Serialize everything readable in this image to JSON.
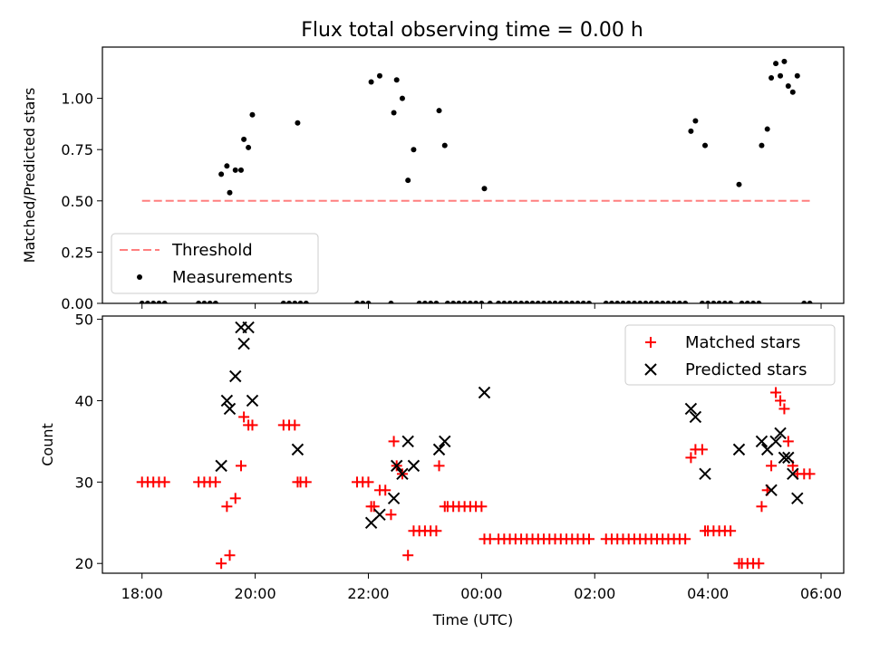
{
  "chart_data": [
    {
      "type": "scatter",
      "title": "Flux total observing time = 0.00 h",
      "xlabel": "",
      "ylabel": "Matched/Predicted stars",
      "xlim": [
        -0.7,
        12.4
      ],
      "ylim": [
        0,
        1.25
      ],
      "yticks": [
        0.0,
        0.25,
        0.5,
        0.75,
        1.0
      ],
      "ytick_labels": [
        "0.00",
        "0.25",
        "0.50",
        "0.75",
        "1.00"
      ],
      "xticks": [
        0,
        2,
        4,
        6,
        8,
        10,
        12
      ],
      "legend": {
        "position": "lower-left",
        "entries": [
          "Threshold",
          "Measurements"
        ]
      },
      "threshold": {
        "name": "Threshold",
        "value": 0.5,
        "x_range": [
          0,
          11.8
        ],
        "color": "#ff7f7f"
      },
      "series": [
        {
          "name": "Measurements",
          "color": "#000000",
          "points": [
            [
              0.0,
              0
            ],
            [
              0.1,
              0
            ],
            [
              0.2,
              0
            ],
            [
              0.3,
              0
            ],
            [
              0.4,
              0
            ],
            [
              1.0,
              0
            ],
            [
              1.1,
              0
            ],
            [
              1.2,
              0
            ],
            [
              1.3,
              0
            ],
            [
              1.4,
              0.63
            ],
            [
              1.5,
              0.67
            ],
            [
              1.55,
              0.54
            ],
            [
              1.65,
              0.65
            ],
            [
              1.75,
              0.65
            ],
            [
              1.8,
              0.8
            ],
            [
              1.88,
              0.76
            ],
            [
              1.95,
              0.92
            ],
            [
              2.5,
              0
            ],
            [
              2.6,
              0
            ],
            [
              2.7,
              0
            ],
            [
              2.75,
              0.88
            ],
            [
              2.8,
              0
            ],
            [
              2.9,
              0
            ],
            [
              3.8,
              0
            ],
            [
              3.9,
              0
            ],
            [
              4.0,
              0
            ],
            [
              4.05,
              1.08
            ],
            [
              4.2,
              1.11
            ],
            [
              4.4,
              0
            ],
            [
              4.45,
              0.93
            ],
            [
              4.5,
              1.09
            ],
            [
              4.6,
              1.0
            ],
            [
              4.7,
              0.6
            ],
            [
              4.8,
              0.75
            ],
            [
              4.9,
              0
            ],
            [
              5.0,
              0
            ],
            [
              5.1,
              0
            ],
            [
              5.2,
              0
            ],
            [
              5.25,
              0.94
            ],
            [
              5.35,
              0.77
            ],
            [
              5.4,
              0
            ],
            [
              5.5,
              0
            ],
            [
              5.6,
              0
            ],
            [
              5.7,
              0
            ],
            [
              5.8,
              0
            ],
            [
              5.9,
              0
            ],
            [
              6.0,
              0
            ],
            [
              6.05,
              0.56
            ],
            [
              6.15,
              0
            ],
            [
              6.3,
              0
            ],
            [
              6.4,
              0
            ],
            [
              6.5,
              0
            ],
            [
              6.6,
              0
            ],
            [
              6.7,
              0
            ],
            [
              6.8,
              0
            ],
            [
              6.9,
              0
            ],
            [
              7.0,
              0
            ],
            [
              7.1,
              0
            ],
            [
              7.2,
              0
            ],
            [
              7.3,
              0
            ],
            [
              7.4,
              0
            ],
            [
              7.5,
              0
            ],
            [
              7.6,
              0
            ],
            [
              7.7,
              0
            ],
            [
              7.8,
              0
            ],
            [
              7.9,
              0
            ],
            [
              8.2,
              0
            ],
            [
              8.3,
              0
            ],
            [
              8.4,
              0
            ],
            [
              8.5,
              0
            ],
            [
              8.6,
              0
            ],
            [
              8.7,
              0
            ],
            [
              8.8,
              0
            ],
            [
              8.9,
              0
            ],
            [
              9.0,
              0
            ],
            [
              9.1,
              0
            ],
            [
              9.2,
              0
            ],
            [
              9.3,
              0
            ],
            [
              9.4,
              0
            ],
            [
              9.5,
              0
            ],
            [
              9.6,
              0
            ],
            [
              9.7,
              0.84
            ],
            [
              9.78,
              0.89
            ],
            [
              9.9,
              0
            ],
            [
              9.95,
              0.77
            ],
            [
              10.0,
              0
            ],
            [
              10.1,
              0
            ],
            [
              10.2,
              0
            ],
            [
              10.3,
              0
            ],
            [
              10.4,
              0
            ],
            [
              10.55,
              0.58
            ],
            [
              10.6,
              0
            ],
            [
              10.7,
              0
            ],
            [
              10.8,
              0
            ],
            [
              10.9,
              0
            ],
            [
              10.95,
              0.77
            ],
            [
              11.05,
              0.85
            ],
            [
              11.12,
              1.1
            ],
            [
              11.2,
              1.17
            ],
            [
              11.28,
              1.11
            ],
            [
              11.35,
              1.18
            ],
            [
              11.42,
              1.06
            ],
            [
              11.5,
              1.03
            ],
            [
              11.58,
              1.11
            ],
            [
              11.7,
              0
            ],
            [
              11.8,
              0
            ]
          ]
        }
      ]
    },
    {
      "type": "scatter",
      "title": "",
      "xlabel": "Time (UTC)",
      "ylabel": "Count",
      "xlim": [
        -0.7,
        12.4
      ],
      "ylim": [
        18.8,
        50.4
      ],
      "yticks": [
        20,
        30,
        40,
        50
      ],
      "ytick_labels": [
        "20",
        "30",
        "40",
        "50"
      ],
      "xticks": [
        0,
        2,
        4,
        6,
        8,
        10,
        12
      ],
      "xtick_labels": [
        "18:00",
        "20:00",
        "22:00",
        "00:00",
        "02:00",
        "04:00",
        "06:00"
      ],
      "legend": {
        "position": "upper-right",
        "entries": [
          "Matched stars",
          "Predicted stars"
        ]
      },
      "series": [
        {
          "name": "Matched stars",
          "marker": "plus",
          "color": "#ff0000",
          "points": [
            [
              0.0,
              30
            ],
            [
              0.1,
              30
            ],
            [
              0.2,
              30
            ],
            [
              0.3,
              30
            ],
            [
              0.4,
              30
            ],
            [
              1.0,
              30
            ],
            [
              1.1,
              30
            ],
            [
              1.2,
              30
            ],
            [
              1.3,
              30
            ],
            [
              1.4,
              20
            ],
            [
              1.5,
              27
            ],
            [
              1.55,
              21
            ],
            [
              1.65,
              28
            ],
            [
              1.75,
              32
            ],
            [
              1.8,
              38
            ],
            [
              1.88,
              37
            ],
            [
              1.95,
              37
            ],
            [
              2.5,
              37
            ],
            [
              2.6,
              37
            ],
            [
              2.7,
              37
            ],
            [
              2.75,
              30
            ],
            [
              2.8,
              30
            ],
            [
              2.9,
              30
            ],
            [
              3.8,
              30
            ],
            [
              3.9,
              30
            ],
            [
              4.0,
              30
            ],
            [
              4.05,
              27
            ],
            [
              4.1,
              27
            ],
            [
              4.2,
              29
            ],
            [
              4.3,
              29
            ],
            [
              4.4,
              26
            ],
            [
              4.45,
              35
            ],
            [
              4.5,
              32
            ],
            [
              4.6,
              31
            ],
            [
              4.7,
              21
            ],
            [
              4.8,
              24
            ],
            [
              4.9,
              24
            ],
            [
              5.0,
              24
            ],
            [
              5.1,
              24
            ],
            [
              5.2,
              24
            ],
            [
              5.25,
              32
            ],
            [
              5.35,
              27
            ],
            [
              5.4,
              27
            ],
            [
              5.5,
              27
            ],
            [
              5.6,
              27
            ],
            [
              5.7,
              27
            ],
            [
              5.8,
              27
            ],
            [
              5.9,
              27
            ],
            [
              6.0,
              27
            ],
            [
              6.05,
              23
            ],
            [
              6.15,
              23
            ],
            [
              6.3,
              23
            ],
            [
              6.4,
              23
            ],
            [
              6.5,
              23
            ],
            [
              6.6,
              23
            ],
            [
              6.7,
              23
            ],
            [
              6.8,
              23
            ],
            [
              6.9,
              23
            ],
            [
              7.0,
              23
            ],
            [
              7.1,
              23
            ],
            [
              7.2,
              23
            ],
            [
              7.3,
              23
            ],
            [
              7.4,
              23
            ],
            [
              7.5,
              23
            ],
            [
              7.6,
              23
            ],
            [
              7.7,
              23
            ],
            [
              7.8,
              23
            ],
            [
              7.9,
              23
            ],
            [
              8.2,
              23
            ],
            [
              8.3,
              23
            ],
            [
              8.4,
              23
            ],
            [
              8.5,
              23
            ],
            [
              8.6,
              23
            ],
            [
              8.7,
              23
            ],
            [
              8.8,
              23
            ],
            [
              8.9,
              23
            ],
            [
              9.0,
              23
            ],
            [
              9.1,
              23
            ],
            [
              9.2,
              23
            ],
            [
              9.3,
              23
            ],
            [
              9.4,
              23
            ],
            [
              9.5,
              23
            ],
            [
              9.6,
              23
            ],
            [
              9.7,
              33
            ],
            [
              9.78,
              34
            ],
            [
              9.9,
              34
            ],
            [
              9.95,
              24
            ],
            [
              10.0,
              24
            ],
            [
              10.1,
              24
            ],
            [
              10.2,
              24
            ],
            [
              10.3,
              24
            ],
            [
              10.4,
              24
            ],
            [
              10.55,
              20
            ],
            [
              10.6,
              20
            ],
            [
              10.7,
              20
            ],
            [
              10.8,
              20
            ],
            [
              10.9,
              20
            ],
            [
              10.95,
              27
            ],
            [
              11.05,
              29
            ],
            [
              11.12,
              32
            ],
            [
              11.2,
              41
            ],
            [
              11.28,
              40
            ],
            [
              11.35,
              39
            ],
            [
              11.42,
              35
            ],
            [
              11.5,
              32
            ],
            [
              11.58,
              31
            ],
            [
              11.7,
              31
            ],
            [
              11.8,
              31
            ]
          ]
        },
        {
          "name": "Predicted stars",
          "marker": "x",
          "color": "#000000",
          "points": [
            [
              1.4,
              32
            ],
            [
              1.5,
              40
            ],
            [
              1.55,
              39
            ],
            [
              1.65,
              43
            ],
            [
              1.75,
              49
            ],
            [
              1.8,
              47
            ],
            [
              1.88,
              49
            ],
            [
              1.95,
              40
            ],
            [
              2.75,
              34
            ],
            [
              4.05,
              25
            ],
            [
              4.2,
              26
            ],
            [
              4.45,
              28
            ],
            [
              4.5,
              32
            ],
            [
              4.6,
              31
            ],
            [
              4.7,
              35
            ],
            [
              4.8,
              32
            ],
            [
              5.25,
              34
            ],
            [
              5.35,
              35
            ],
            [
              6.05,
              41
            ],
            [
              9.7,
              39
            ],
            [
              9.78,
              38
            ],
            [
              9.95,
              31
            ],
            [
              10.55,
              34
            ],
            [
              10.95,
              35
            ],
            [
              11.05,
              34
            ],
            [
              11.12,
              29
            ],
            [
              11.2,
              35
            ],
            [
              11.28,
              36
            ],
            [
              11.35,
              33
            ],
            [
              11.42,
              33
            ],
            [
              11.5,
              31
            ],
            [
              11.58,
              28
            ]
          ]
        }
      ]
    }
  ]
}
